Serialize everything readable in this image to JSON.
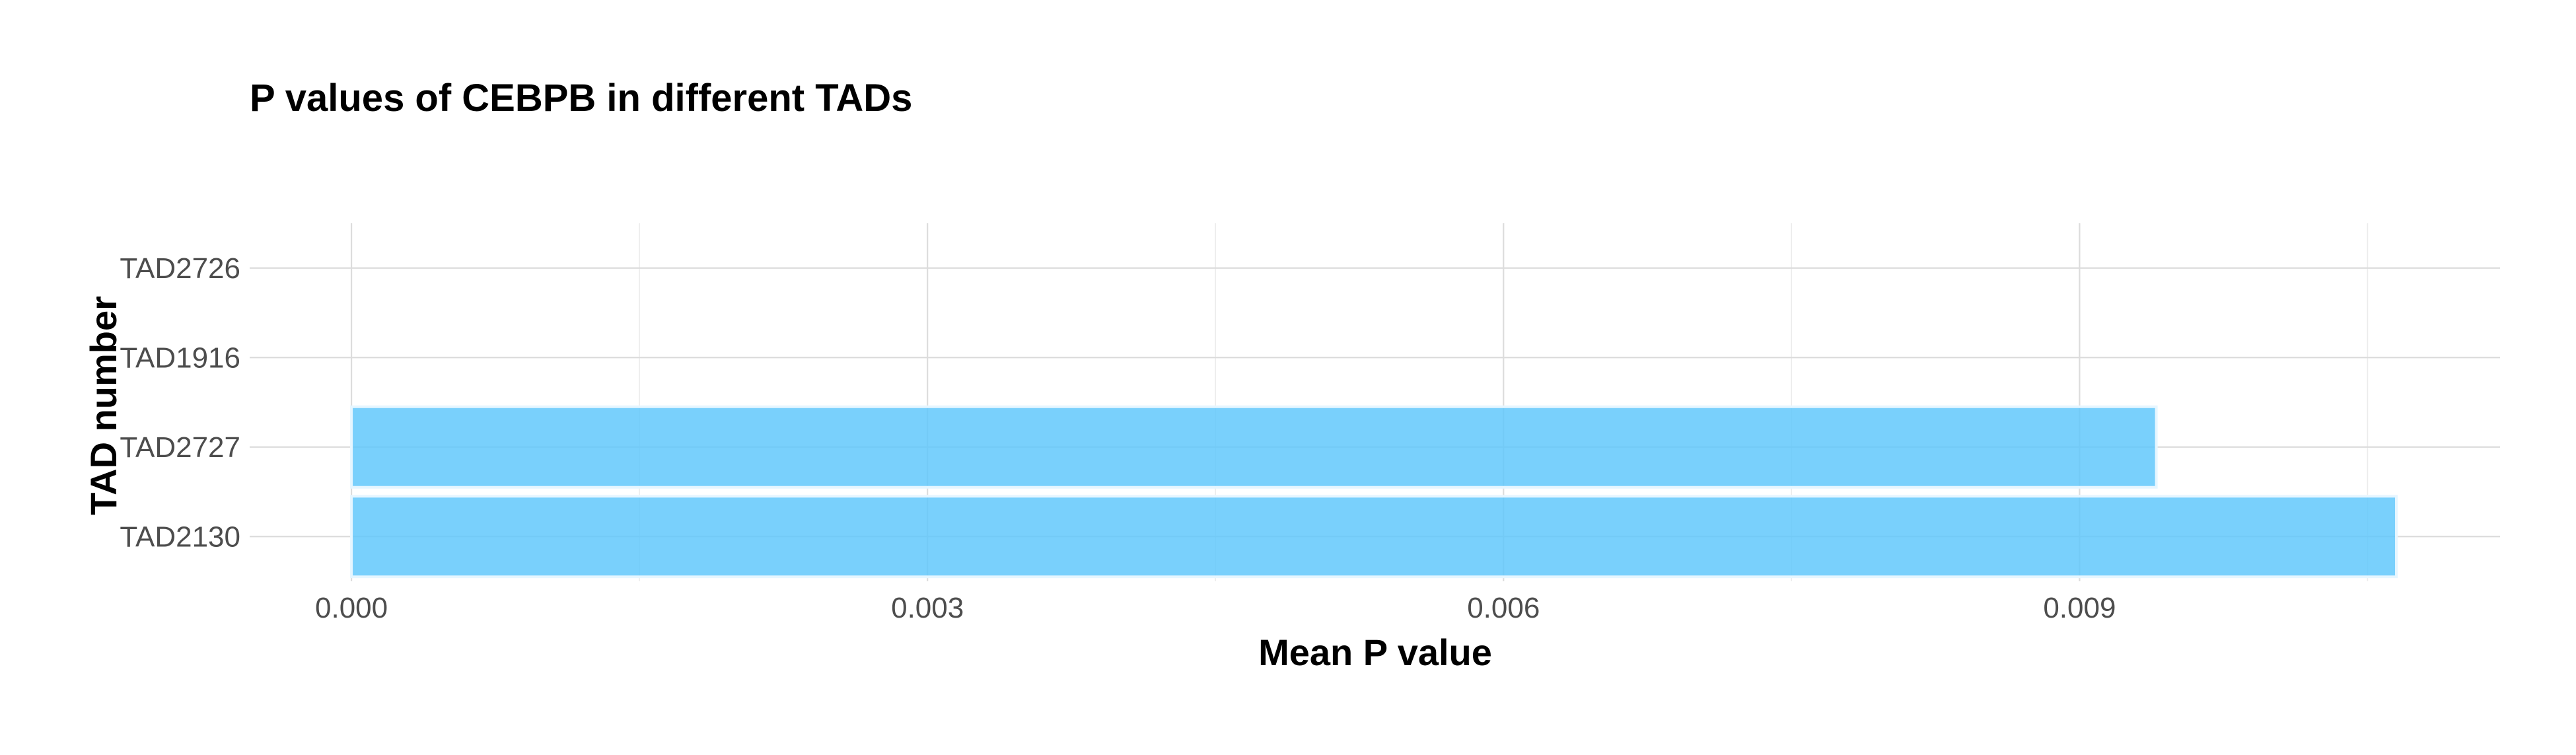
{
  "chart_data": {
    "type": "bar",
    "orientation": "horizontal",
    "title": "P values of CEBPB in different TADs",
    "xlabel": "Mean P value",
    "ylabel": "TAD number",
    "categories": [
      "TAD2726",
      "TAD1916",
      "TAD2727",
      "TAD2130"
    ],
    "values": [
      0.0,
      0.0,
      0.0094,
      0.01065
    ],
    "xlim": [
      -0.00053,
      0.01119
    ],
    "xticks": [
      "0.000",
      "0.003",
      "0.006",
      "0.009"
    ],
    "xtick_values": [
      0.0,
      0.003,
      0.006,
      0.009
    ],
    "bar_color": "#5bc6fb",
    "grid": true,
    "legend": "none"
  }
}
